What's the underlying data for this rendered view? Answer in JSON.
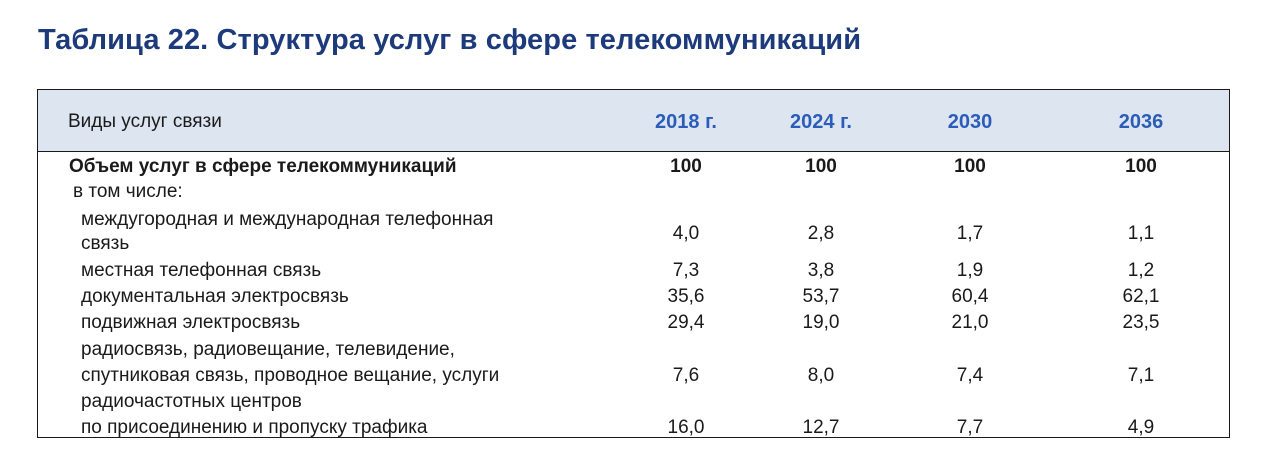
{
  "title": "Таблица 22. Структура услуг в сфере телекоммуникаций",
  "table": {
    "header": {
      "label": "Виды услуг связи",
      "years": [
        "2018 г.",
        "2024 г.",
        "2030",
        "2036"
      ]
    },
    "rows": [
      {
        "label_lines": [
          "Объем услуг в сфере телекоммуникаций"
        ],
        "values": [
          "100",
          "100",
          "100",
          "100"
        ],
        "bold": true
      },
      {
        "label_lines": [
          "в том числе:"
        ],
        "values": [
          "",
          "",
          "",
          ""
        ],
        "bold": false
      },
      {
        "label_lines": [
          "междугородная и международная телефонная",
          "связь"
        ],
        "values": [
          "4,0",
          "2,8",
          "1,7",
          "1,1"
        ],
        "bold": false
      },
      {
        "label_lines": [
          "местная телефонная связь"
        ],
        "values": [
          "7,3",
          "3,8",
          "1,9",
          "1,2"
        ],
        "bold": false
      },
      {
        "label_lines": [
          "документальная электросвязь"
        ],
        "values": [
          "35,6",
          "53,7",
          "60,4",
          "62,1"
        ],
        "bold": false
      },
      {
        "label_lines": [
          "подвижная электросвязь"
        ],
        "values": [
          "29,4",
          "19,0",
          "21,0",
          "23,5"
        ],
        "bold": false
      },
      {
        "label_lines": [
          "радиосвязь, радиовещание, телевидение,",
          "спутниковая связь, проводное вещание, услуги",
          "радиочастотных центров"
        ],
        "values": [
          "7,6",
          "8,0",
          "7,4",
          "7,1"
        ],
        "bold": false
      },
      {
        "label_lines": [
          "по присоединению и пропуску трафика"
        ],
        "values": [
          "16,0",
          "12,7",
          "7,7",
          "4,9"
        ],
        "bold": false
      }
    ]
  },
  "colors": {
    "title": "#1d3a7a",
    "year_header": "#2b5db8",
    "header_band": "#dde5f1",
    "border": "#1a1a1a"
  }
}
